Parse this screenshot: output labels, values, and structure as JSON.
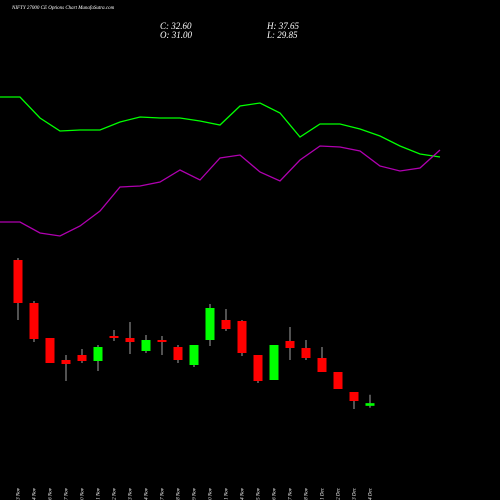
{
  "chart_data": {
    "type": "candlestick",
    "title": "NIFTY 27000 CE Options Chart MunafaSutra.com",
    "header": {
      "close": "C: 32.60",
      "high": "H: 37.65",
      "open": "O: 31.00",
      "low": "L: 29.85"
    },
    "categories": [
      "03 Nov",
      "04 Nov",
      "06 Nov",
      "07 Nov",
      "10 Nov",
      "11 Nov",
      "12 Nov",
      "13 Nov",
      "14 Nov",
      "17 Nov",
      "18 Nov",
      "19 Nov",
      "20 Nov",
      "21 Nov",
      "24 Nov",
      "25 Nov",
      "26 Nov",
      "27 Nov",
      "28 Nov",
      "01 Dec",
      "02 Dec",
      "03 Dec",
      "04 Dec"
    ],
    "open": [
      118.5,
      92.7,
      71.7,
      58.5,
      61.5,
      57.9,
      72.9,
      71.7,
      63.9,
      70.5,
      66.3,
      55.5,
      70.5,
      82.5,
      81.9,
      61.5,
      46.5,
      69.9,
      65.7,
      59.7,
      51.3,
      39.3,
      31.0
    ],
    "high": [
      119.7,
      93.9,
      71.7,
      61.5,
      65.1,
      67.5,
      76.5,
      81.3,
      73.5,
      72.9,
      67.5,
      67.5,
      92.1,
      89.1,
      82.5,
      61.5,
      67.5,
      78.3,
      70.5,
      66.3,
      51.3,
      39.3,
      37.65
    ],
    "low": [
      82.5,
      69.3,
      56.7,
      45.9,
      56.7,
      51.9,
      69.9,
      62.1,
      62.7,
      61.5,
      56.7,
      54.3,
      66.9,
      75.9,
      60.9,
      44.7,
      46.5,
      58.5,
      58.5,
      51.3,
      41.1,
      29.1,
      29.85
    ],
    "close": [
      92.7,
      71.1,
      56.7,
      56.1,
      57.9,
      66.3,
      71.7,
      69.3,
      70.5,
      69.3,
      58.5,
      67.5,
      89.7,
      77.1,
      62.7,
      45.9,
      67.5,
      65.7,
      59.7,
      51.3,
      41.1,
      33.9,
      32.6
    ],
    "up_color": "#00ff00",
    "down_color": "#ff0000",
    "lines": [
      {
        "color": "#00ff00",
        "values": [
          153,
          153,
          132,
          119,
          120,
          120,
          128,
          133,
          132,
          132,
          129,
          125,
          144,
          147,
          137,
          113,
          126,
          126,
          121,
          114,
          104,
          96,
          93
        ]
      },
      {
        "color": "#b000b0",
        "values": [
          28,
          28,
          17,
          14,
          24,
          39,
          63,
          64,
          68,
          80,
          70,
          92,
          95,
          78,
          69,
          90,
          104,
          103,
          99,
          84,
          79,
          82,
          100
        ]
      }
    ]
  }
}
